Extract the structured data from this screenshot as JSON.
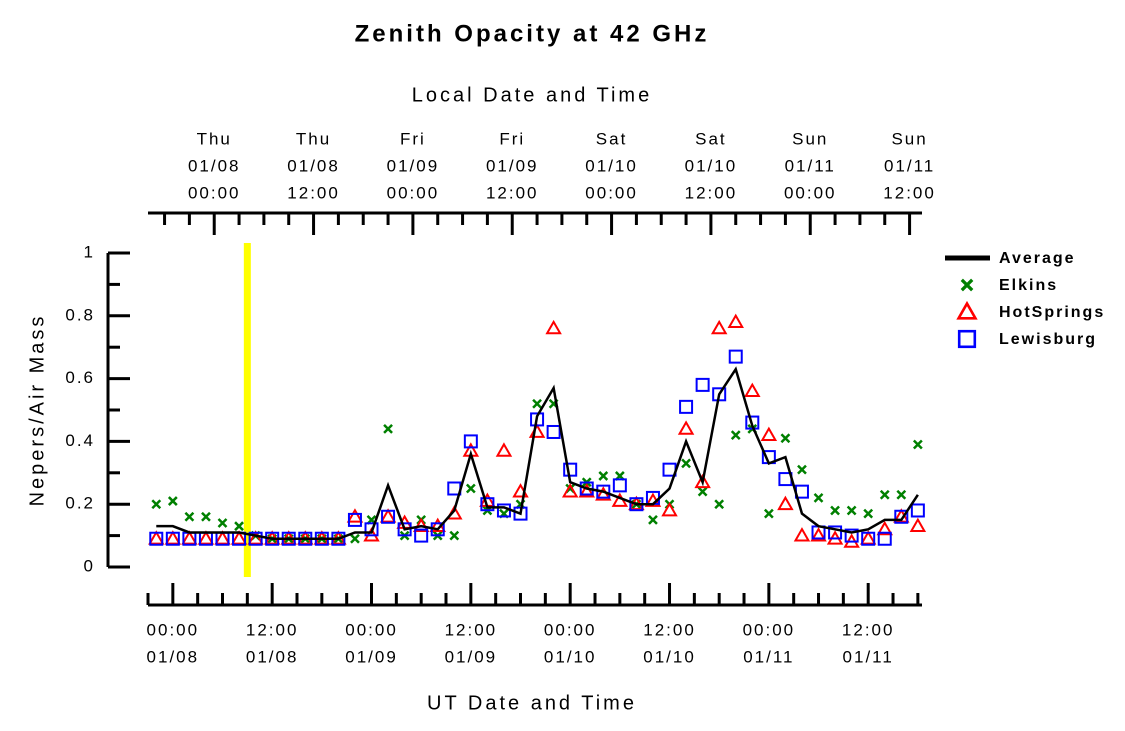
{
  "chart_data": {
    "type": "line",
    "title": "Zenith Opacity at 42 GHz",
    "xlabel": "UT Date and Time",
    "x2label": "Local Date and Time",
    "ylabel": "Nepers/Air Mass",
    "xlim": [
      -3,
      90.5
    ],
    "ylim": [
      0,
      1
    ],
    "yticks": [
      0,
      0.2,
      0.4,
      0.6,
      0.8,
      1
    ],
    "yminorticks": [
      0.1,
      0.3,
      0.5,
      0.7,
      0.9
    ],
    "xticks": [
      {
        "value": 0,
        "label": [
          "00:00",
          "01/08"
        ]
      },
      {
        "value": 12,
        "label": [
          "12:00",
          "01/08"
        ]
      },
      {
        "value": 24,
        "label": [
          "00:00",
          "01/09"
        ]
      },
      {
        "value": 36,
        "label": [
          "12:00",
          "01/09"
        ]
      },
      {
        "value": 48,
        "label": [
          "00:00",
          "01/10"
        ]
      },
      {
        "value": 60,
        "label": [
          "12:00",
          "01/10"
        ]
      },
      {
        "value": 72,
        "label": [
          "00:00",
          "01/11"
        ]
      },
      {
        "value": 84,
        "label": [
          "12:00",
          "01/11"
        ]
      }
    ],
    "xminorticks": [
      -3,
      3,
      6,
      9,
      15,
      18,
      21,
      27,
      30,
      33,
      39,
      42,
      45,
      51,
      54,
      57,
      63,
      66,
      69,
      75,
      78,
      81,
      87,
      90
    ],
    "x2ticks": [
      {
        "value": 5,
        "label": [
          "Thu",
          "01/08",
          "00:00"
        ]
      },
      {
        "value": 17,
        "label": [
          "Thu",
          "01/08",
          "12:00"
        ]
      },
      {
        "value": 29,
        "label": [
          "Fri",
          "01/09",
          "00:00"
        ]
      },
      {
        "value": 41,
        "label": [
          "Fri",
          "01/09",
          "12:00"
        ]
      },
      {
        "value": 53,
        "label": [
          "Sat",
          "01/10",
          "00:00"
        ]
      },
      {
        "value": 65,
        "label": [
          "Sat",
          "01/10",
          "12:00"
        ]
      },
      {
        "value": 77,
        "label": [
          "Sun",
          "01/11",
          "00:00"
        ]
      },
      {
        "value": 89,
        "label": [
          "Sun",
          "01/11",
          "12:00"
        ]
      }
    ],
    "x2minorticks": [
      -1,
      2,
      8,
      11,
      14,
      20,
      23,
      26,
      32,
      35,
      38,
      44,
      47,
      50,
      56,
      59,
      62,
      68,
      71,
      74,
      80,
      83,
      86
    ],
    "vline": {
      "x": 9,
      "color": "#ffff00"
    },
    "legend": "right",
    "x": [
      -2,
      0,
      2,
      4,
      6,
      8,
      10,
      12,
      14,
      16,
      18,
      20,
      22,
      24,
      26,
      28,
      30,
      32,
      34,
      36,
      38,
      40,
      42,
      44,
      46,
      48,
      50,
      52,
      54,
      56,
      58,
      60,
      62,
      64,
      66,
      68,
      70,
      72,
      74,
      76,
      78,
      80,
      82,
      84,
      86,
      88,
      90
    ],
    "series": [
      {
        "name": "Average",
        "color": "#000000",
        "marker": "line",
        "values": [
          0.13,
          0.13,
          0.11,
          0.11,
          0.11,
          0.11,
          0.1,
          0.09,
          0.09,
          0.09,
          0.09,
          0.09,
          0.11,
          0.11,
          0.26,
          0.12,
          0.13,
          0.12,
          0.18,
          0.36,
          0.19,
          0.19,
          0.17,
          0.48,
          0.57,
          0.27,
          0.25,
          0.24,
          0.22,
          0.2,
          0.2,
          0.25,
          0.4,
          0.27,
          0.55,
          0.63,
          0.45,
          0.33,
          0.35,
          0.17,
          0.13,
          0.12,
          0.11,
          0.12,
          0.15,
          0.15,
          0.23
        ]
      },
      {
        "name": "Elkins",
        "color": "#008000",
        "marker": "x",
        "values": [
          0.2,
          0.21,
          0.16,
          0.16,
          0.14,
          0.13,
          0.1,
          0.09,
          0.09,
          0.09,
          0.09,
          0.09,
          0.09,
          0.15,
          0.44,
          0.1,
          0.15,
          0.1,
          0.1,
          0.25,
          0.18,
          0.17,
          0.2,
          0.52,
          0.52,
          0.25,
          0.27,
          0.29,
          0.29,
          0.2,
          0.15,
          0.2,
          0.33,
          0.24,
          0.2,
          0.42,
          0.44,
          0.17,
          0.41,
          0.31,
          0.22,
          0.18,
          0.18,
          0.17,
          0.23,
          0.23,
          0.39
        ]
      },
      {
        "name": "HotSprings",
        "color": "#ff0000",
        "marker": "triangle",
        "values": [
          0.09,
          0.09,
          0.09,
          0.09,
          0.09,
          0.09,
          0.09,
          0.09,
          0.09,
          0.09,
          0.09,
          0.09,
          0.16,
          0.1,
          0.16,
          0.14,
          0.13,
          0.13,
          0.17,
          0.37,
          0.21,
          0.37,
          0.24,
          0.43,
          0.76,
          0.24,
          0.24,
          0.23,
          0.21,
          0.2,
          0.21,
          0.18,
          0.44,
          0.27,
          0.76,
          0.78,
          0.56,
          0.42,
          0.2,
          0.1,
          0.1,
          0.09,
          0.08,
          0.09,
          0.12,
          0.16,
          0.13
        ]
      },
      {
        "name": "Lewisburg",
        "color": "#0000ff",
        "marker": "square",
        "values": [
          0.09,
          0.09,
          0.09,
          0.09,
          0.09,
          0.09,
          0.09,
          0.09,
          0.09,
          0.09,
          0.09,
          0.09,
          0.15,
          0.12,
          0.16,
          0.12,
          0.1,
          0.12,
          0.25,
          0.4,
          0.2,
          0.18,
          0.17,
          0.47,
          0.43,
          0.31,
          0.25,
          0.24,
          0.26,
          0.2,
          0.22,
          0.31,
          0.51,
          0.58,
          0.55,
          0.67,
          0.46,
          0.35,
          0.28,
          0.24,
          0.11,
          0.11,
          0.1,
          0.09,
          0.09,
          0.16,
          0.18
        ]
      }
    ]
  }
}
